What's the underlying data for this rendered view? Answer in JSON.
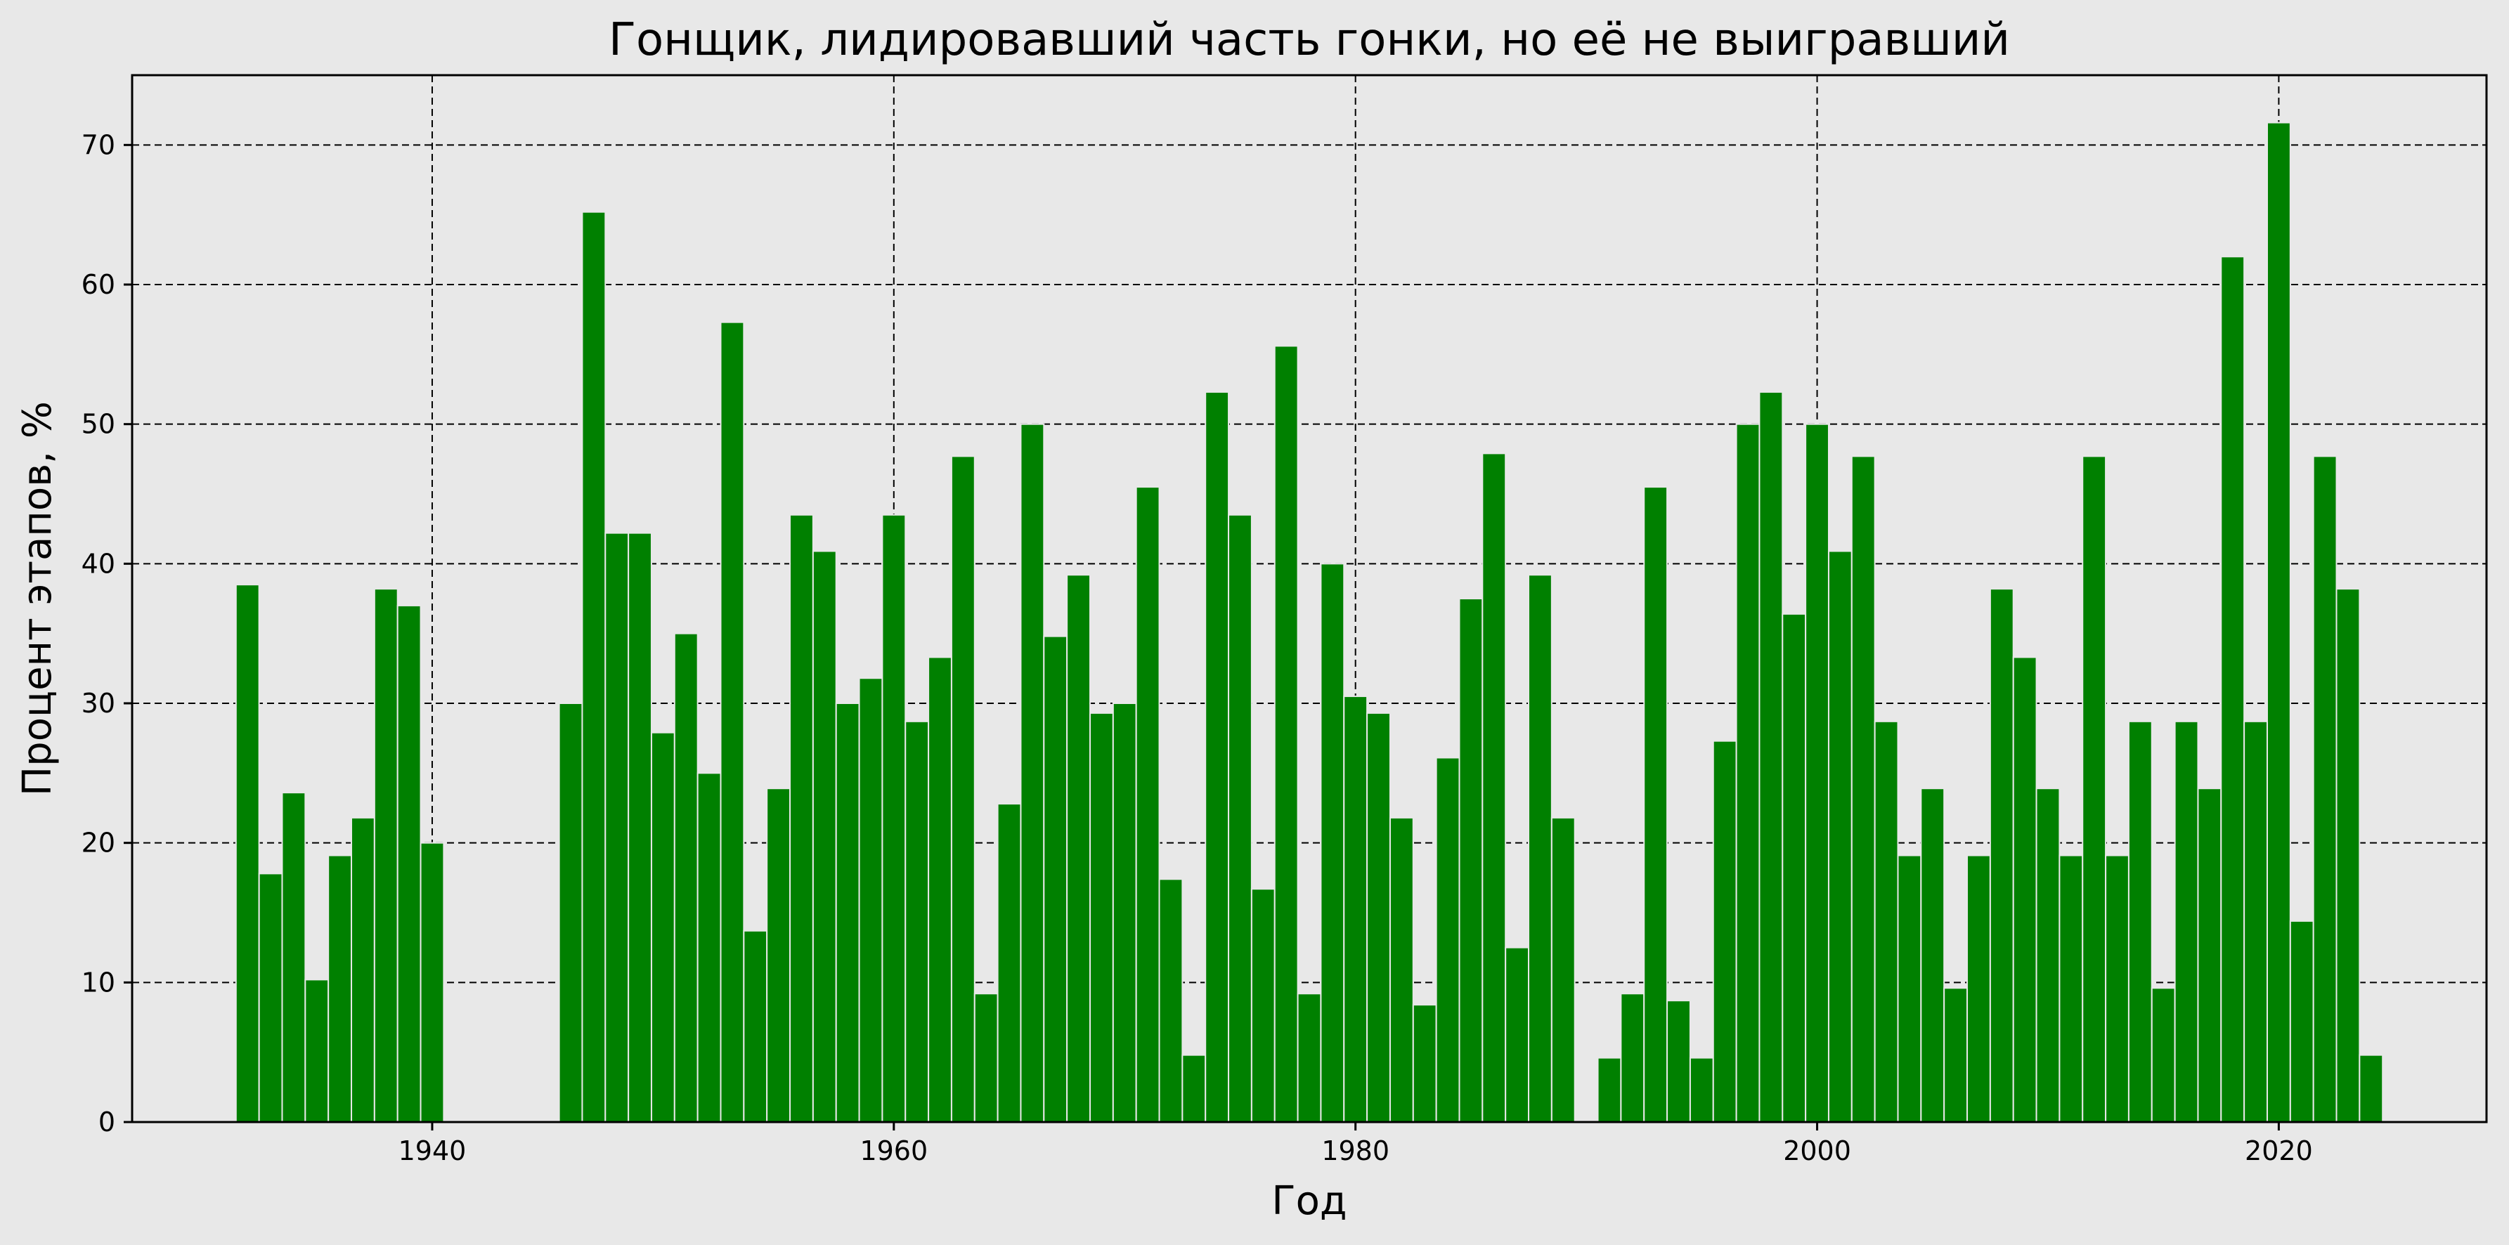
{
  "chart_data": {
    "type": "bar",
    "title": "Гонщик, лидировавший часть гонки, но её не выигравший",
    "xlabel": "Год",
    "ylabel": "Процент этапов, %",
    "xlim": [
      1927,
      2029
    ],
    "ylim": [
      0,
      75
    ],
    "xticks": [
      1940,
      1960,
      1980,
      2000,
      2020
    ],
    "yticks": [
      0,
      10,
      20,
      30,
      40,
      50,
      60,
      70
    ],
    "grid": true,
    "bar_color": "#008000",
    "background": "#e8e8e8",
    "x": [
      1932,
      1933,
      1934,
      1935,
      1936,
      1937,
      1938,
      1939,
      1940,
      1946,
      1947,
      1948,
      1949,
      1950,
      1951,
      1952,
      1953,
      1954,
      1955,
      1956,
      1957,
      1958,
      1959,
      1960,
      1961,
      1962,
      1963,
      1964,
      1965,
      1966,
      1967,
      1968,
      1969,
      1970,
      1971,
      1972,
      1973,
      1974,
      1975,
      1976,
      1977,
      1978,
      1979,
      1980,
      1981,
      1982,
      1983,
      1984,
      1985,
      1986,
      1987,
      1988,
      1989,
      1991,
      1992,
      1993,
      1994,
      1995,
      1996,
      1997,
      1998,
      1999,
      2000,
      2001,
      2002,
      2003,
      2004,
      2005,
      2006,
      2007,
      2008,
      2009,
      2010,
      2011,
      2012,
      2013,
      2014,
      2015,
      2016,
      2017,
      2018,
      2019,
      2020,
      2021,
      2022,
      2023,
      2024
    ],
    "values": [
      38.5,
      17.8,
      23.6,
      10.2,
      19.1,
      21.8,
      38.2,
      37.0,
      20.0,
      30.0,
      65.2,
      42.2,
      42.2,
      27.9,
      35.0,
      25.0,
      57.3,
      13.7,
      23.9,
      43.5,
      40.9,
      30.0,
      31.8,
      43.5,
      28.7,
      33.3,
      47.7,
      9.2,
      22.8,
      50.0,
      34.8,
      39.2,
      29.3,
      30.0,
      45.5,
      17.4,
      4.8,
      52.3,
      43.5,
      16.7,
      55.6,
      9.2,
      40.0,
      30.5,
      29.3,
      21.8,
      8.4,
      26.1,
      37.5,
      47.9,
      12.5,
      39.2,
      21.8,
      4.6,
      9.2,
      45.5,
      8.7,
      4.6,
      27.3,
      50.0,
      52.3,
      36.4,
      50.0,
      40.9,
      47.7,
      28.7,
      19.1,
      23.9,
      9.6,
      19.1,
      38.2,
      33.3,
      23.9,
      19.1,
      47.7,
      19.1,
      28.7,
      9.6,
      28.7,
      23.9,
      62.0,
      28.7,
      71.6,
      14.4,
      47.7,
      38.2,
      4.8
    ]
  }
}
